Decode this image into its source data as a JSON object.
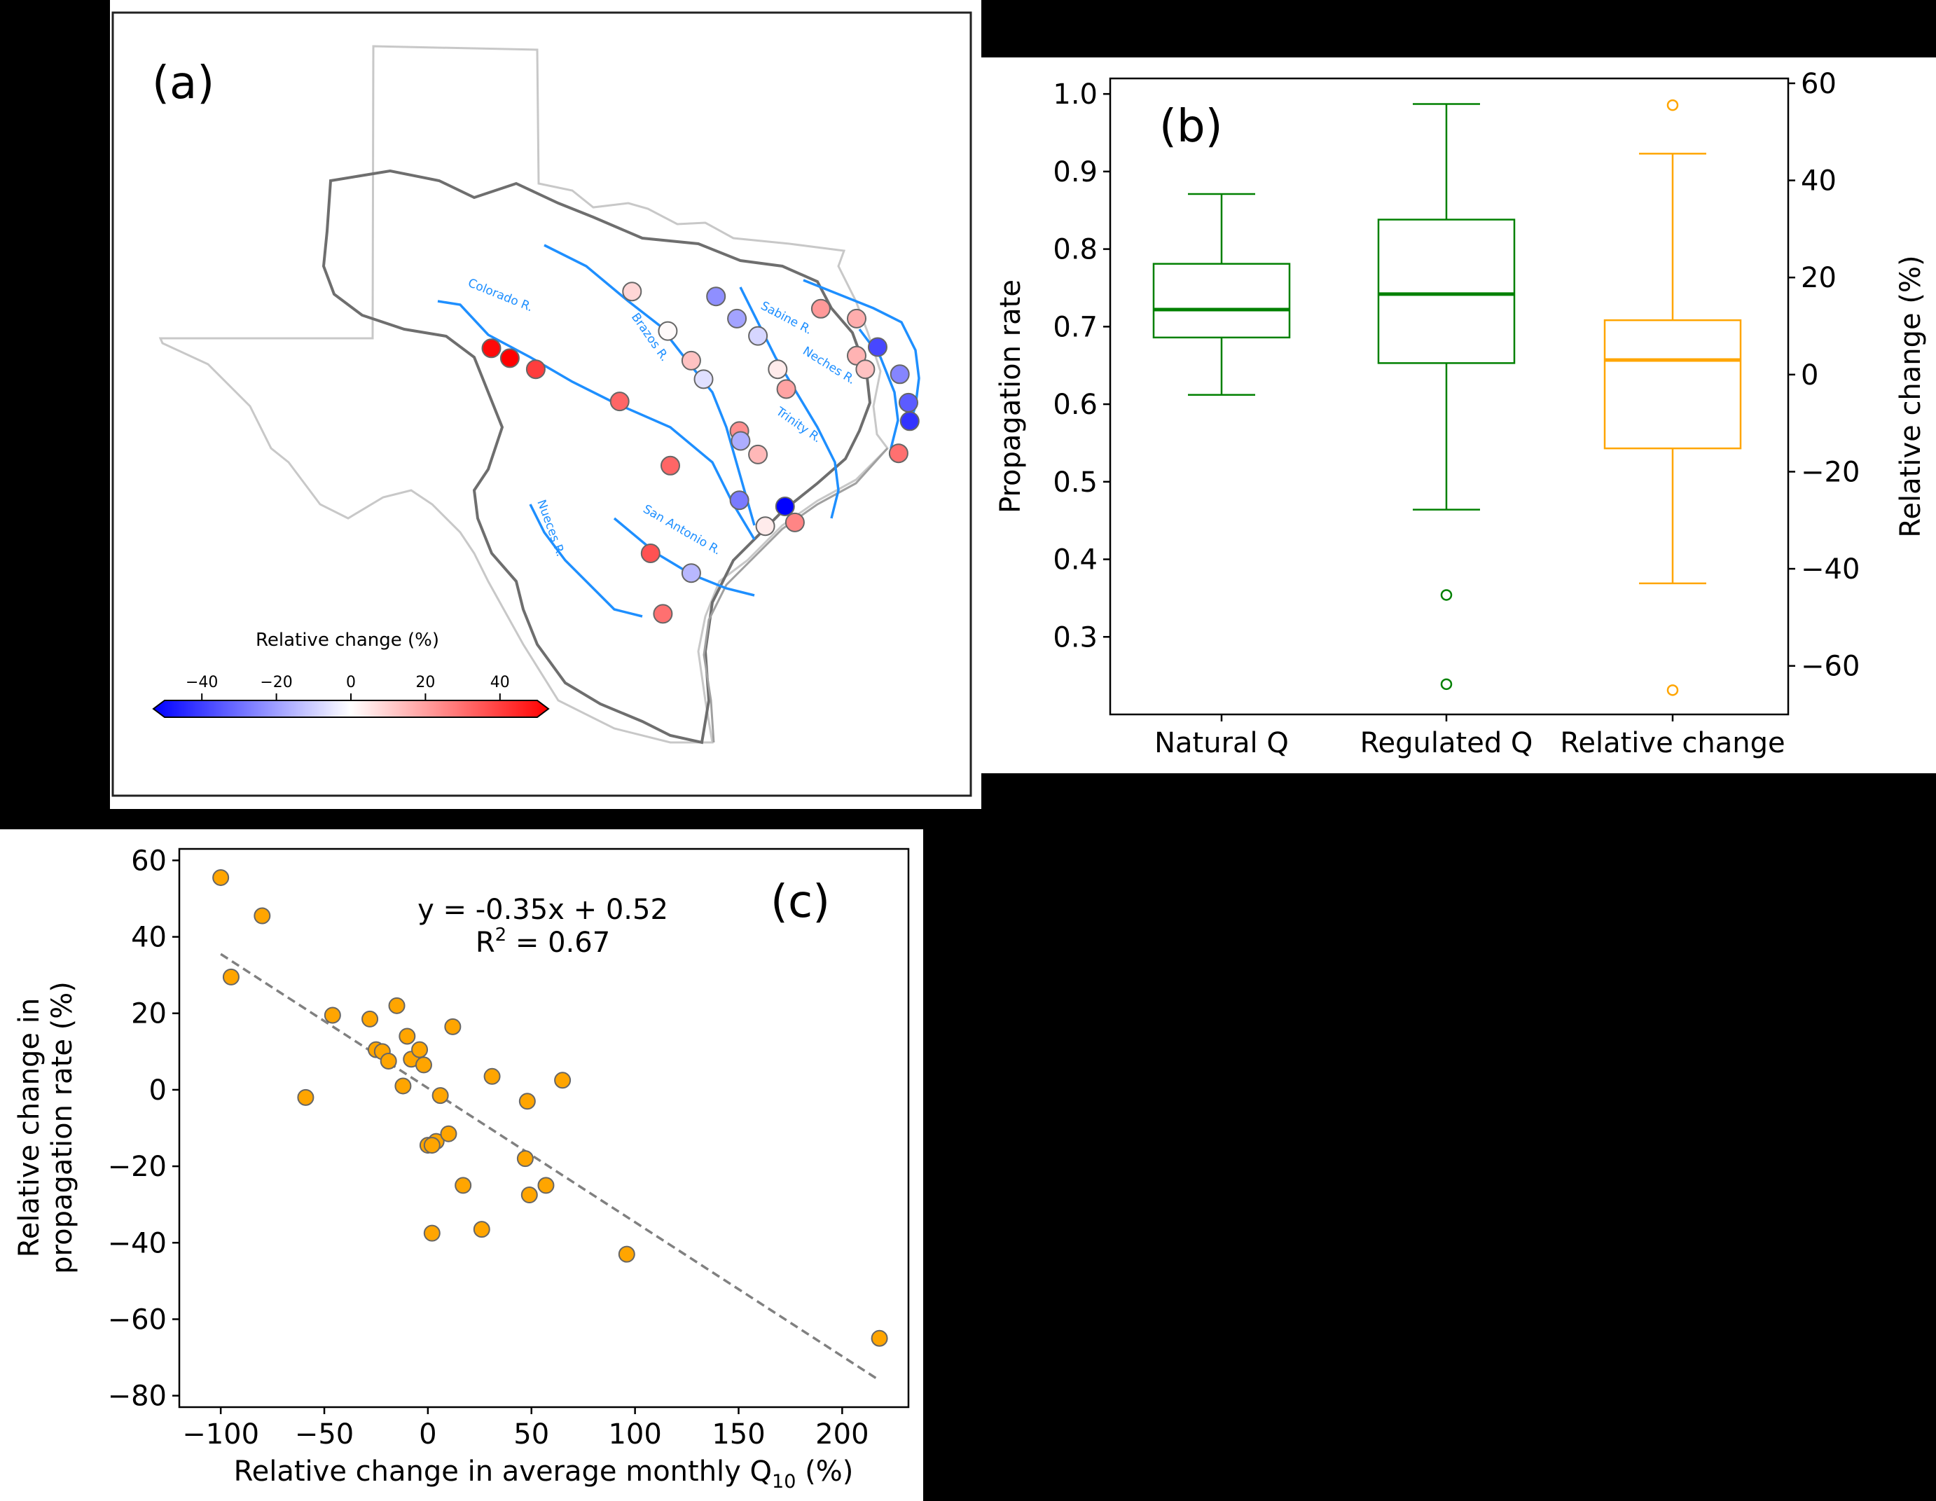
{
  "panel_a": {
    "label": "(a)",
    "colorbar": {
      "title": "Relative change (%)",
      "ticks": [
        "−40",
        "−20",
        "0",
        "20",
        "40"
      ],
      "colors": [
        "#0000ff",
        "#ffffff",
        "#ff0000"
      ]
    },
    "rivers": [
      "Colorado R.",
      "Brazos R.",
      "Sabine R.",
      "Neches R.",
      "Trinity R.",
      "Nueces R.",
      "San Antonio R."
    ],
    "station_values": [
      48,
      50,
      38,
      30,
      8,
      1,
      12,
      -6,
      -22,
      -18,
      -8,
      4,
      18,
      20,
      16,
      15,
      12,
      -36,
      -24,
      -32,
      -40,
      28,
      22,
      -16,
      14,
      30,
      -26,
      -50,
      4,
      24,
      34,
      -14,
      28
    ]
  },
  "panel_b": {
    "label": "(b)",
    "colors": {
      "natural": "#008000",
      "regulated": "#008000",
      "relative": "#ffa500"
    }
  },
  "panel_c": {
    "label": "(c)",
    "equation": "y = -0.35x + 0.52",
    "r2_prefix": "R",
    "r2_sup": "2",
    "r2_value": " = 0.67",
    "xlabel_main": "Relative change in average monthly Q",
    "xlabel_sub": "10",
    "xlabel_tail": " (%)",
    "ylabel_line1": "Relative change in",
    "ylabel_line2": "propagation rate (%)",
    "colors": {
      "points": "#ffa500",
      "edge": "#666666",
      "trend": "#808080"
    }
  },
  "chart_data": [
    {
      "type": "box",
      "ylabel": "Propagation rate",
      "y2label": "Relative change (%)",
      "ylim": [
        0.2,
        1.02
      ],
      "y2lim": [
        -70,
        61
      ],
      "yticks": [
        0.3,
        0.4,
        0.5,
        0.6,
        0.7,
        0.8,
        0.9,
        1.0
      ],
      "ytick_labels": [
        "0.3",
        "0.4",
        "0.5",
        "0.6",
        "0.7",
        "0.8",
        "0.9",
        "1.0"
      ],
      "y2ticks": [
        -60,
        -40,
        -20,
        0,
        20,
        40,
        60
      ],
      "y2tick_labels": [
        "−60",
        "−40",
        "−20",
        "0",
        "20",
        "40",
        "60"
      ],
      "categories": [
        "Natural Q",
        "Regulated Q",
        "Relative change"
      ],
      "series": [
        {
          "axis": "left",
          "whisker_low": 0.612,
          "q1": 0.686,
          "median": 0.722,
          "q3": 0.781,
          "whisker_high": 0.871,
          "fliers": []
        },
        {
          "axis": "left",
          "whisker_low": 0.464,
          "q1": 0.653,
          "median": 0.742,
          "q3": 0.838,
          "whisker_high": 0.987,
          "fliers": [
            0.354,
            0.239
          ]
        },
        {
          "axis": "right",
          "whisker_low": -43.0,
          "q1": -15.2,
          "median": 3.0,
          "q3": 11.2,
          "whisker_high": 45.5,
          "fliers": [
            55.5,
            -65.0
          ]
        }
      ]
    },
    {
      "type": "scatter",
      "xlim": [
        -120,
        232
      ],
      "ylim": [
        -83,
        63
      ],
      "xticks": [
        -100,
        -50,
        0,
        50,
        100,
        150,
        200
      ],
      "xtick_labels": [
        "−100",
        "−50",
        "0",
        "50",
        "100",
        "150",
        "200"
      ],
      "yticks": [
        -80,
        -60,
        -40,
        -20,
        0,
        20,
        40,
        60
      ],
      "ytick_labels": [
        "−80",
        "−60",
        "−40",
        "−20",
        "0",
        "20",
        "40",
        "60"
      ],
      "x": [
        -100,
        -80,
        -95,
        -59,
        -46,
        -28,
        -25,
        -22,
        -19,
        -15,
        -12,
        -10,
        -8,
        -4,
        -2,
        0,
        4,
        2,
        6,
        10,
        12,
        17,
        26,
        31,
        47,
        48,
        49,
        57,
        65,
        2,
        96,
        218
      ],
      "y": [
        55.5,
        45.5,
        29.5,
        -2,
        19.5,
        18.5,
        10.5,
        10,
        7.5,
        22,
        1,
        14,
        8,
        10.5,
        6.5,
        -14.5,
        -13.5,
        -37.5,
        -1.5,
        -11.5,
        16.5,
        -25,
        -36.5,
        3.5,
        -18,
        -3,
        -27.5,
        -25,
        2.5,
        -14.5,
        -43,
        -65
      ],
      "trend": {
        "slope": -0.35,
        "intercept": 0.52,
        "x_range": [
          -100,
          218
        ]
      }
    }
  ]
}
